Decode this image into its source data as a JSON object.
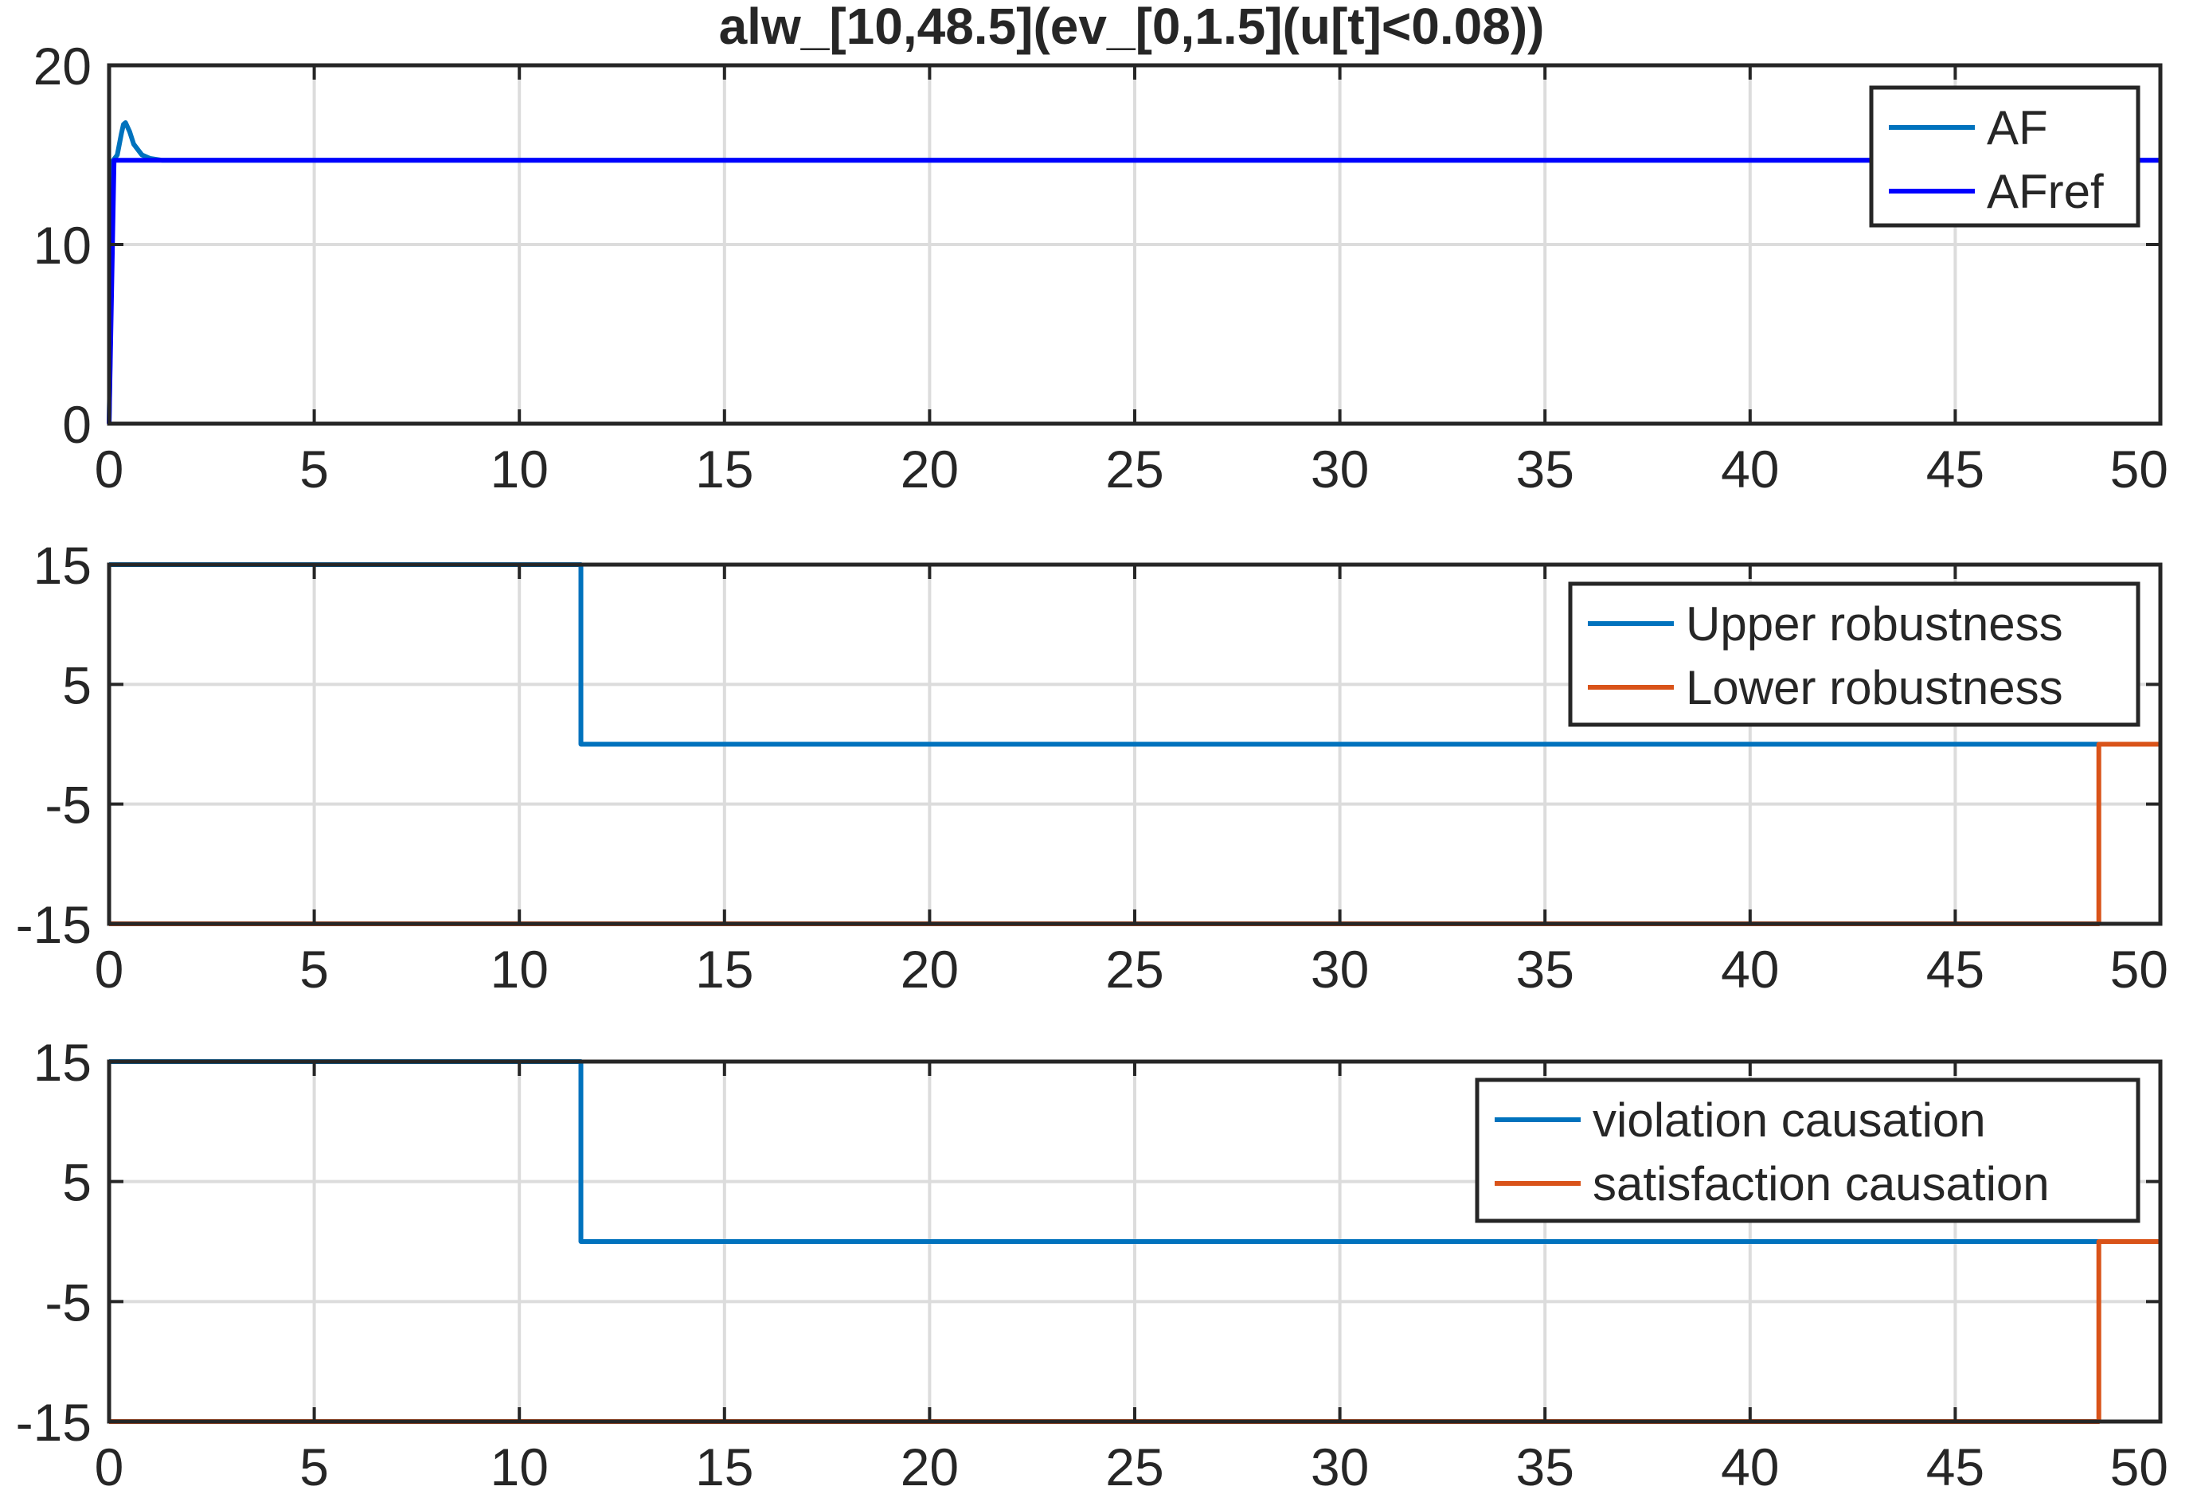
{
  "figure": {
    "title": "alw_[10,48.5](ev_[0,1.5](u[t]<0.08))"
  },
  "chart_data": [
    {
      "type": "line",
      "title": "alw_[10,48.5](ev_[0,1.5](u[t]<0.08))",
      "xlabel": "",
      "ylabel": "",
      "xlim": [
        0,
        50
      ],
      "ylim": [
        0,
        20
      ],
      "xticks": [
        0,
        5,
        10,
        15,
        20,
        25,
        30,
        35,
        40,
        45,
        50
      ],
      "yticks": [
        0,
        10,
        20
      ],
      "grid": true,
      "legend_position": "top-right",
      "series": [
        {
          "name": "AF",
          "color": "#0072BD",
          "x": [
            0,
            0.1,
            0.2,
            0.3,
            0.35,
            0.4,
            0.5,
            0.6,
            0.8,
            1.0,
            1.3,
            1.6,
            2.0,
            50
          ],
          "y": [
            0,
            14.7,
            15.0,
            16.2,
            16.7,
            16.8,
            16.3,
            15.6,
            15.0,
            14.8,
            14.7,
            14.7,
            14.7,
            14.7
          ]
        },
        {
          "name": "AFref",
          "color": "#0000FF",
          "x": [
            0,
            0.12,
            50
          ],
          "y": [
            0,
            14.7,
            14.7
          ]
        }
      ]
    },
    {
      "type": "line",
      "title": "",
      "xlabel": "",
      "ylabel": "",
      "xlim": [
        0,
        50
      ],
      "ylim": [
        -15,
        15
      ],
      "xticks": [
        0,
        5,
        10,
        15,
        20,
        25,
        30,
        35,
        40,
        45,
        50
      ],
      "yticks": [
        -15,
        -5,
        5,
        15
      ],
      "grid": true,
      "legend_position": "top-right",
      "series": [
        {
          "name": "Upper robustness",
          "color": "#0072BD",
          "x": [
            0,
            11.5,
            11.5,
            48.5
          ],
          "y": [
            15,
            15,
            0,
            0
          ]
        },
        {
          "name": "Lower robustness",
          "color": "#D95319",
          "x": [
            0,
            48.5,
            48.5,
            50
          ],
          "y": [
            -15,
            -15,
            0,
            0
          ]
        }
      ]
    },
    {
      "type": "line",
      "title": "",
      "xlabel": "",
      "ylabel": "",
      "xlim": [
        0,
        50
      ],
      "ylim": [
        -15,
        15
      ],
      "xticks": [
        0,
        5,
        10,
        15,
        20,
        25,
        30,
        35,
        40,
        45,
        50
      ],
      "yticks": [
        -15,
        -5,
        5,
        15
      ],
      "grid": true,
      "legend_position": "top-right",
      "series": [
        {
          "name": "violation causation",
          "color": "#0072BD",
          "x": [
            0,
            11.5,
            11.5,
            48.5
          ],
          "y": [
            15,
            15,
            0,
            0
          ]
        },
        {
          "name": "satisfaction causation",
          "color": "#D95319",
          "x": [
            0,
            48.5,
            48.5,
            50
          ],
          "y": [
            -15,
            -15,
            0,
            0
          ]
        }
      ]
    }
  ]
}
